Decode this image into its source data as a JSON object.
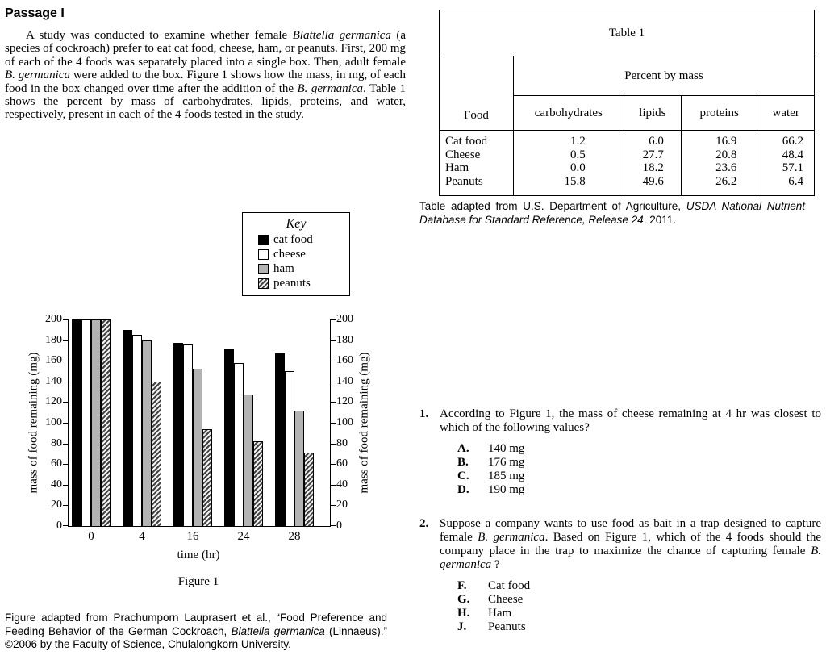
{
  "passage": {
    "title": "Passage I",
    "paragraph": [
      {
        "text": "A study was conducted to examine whether female "
      },
      {
        "text": "Blattella germanica",
        "italic": true
      },
      {
        "text": " (a species of cockroach) prefer to eat cat food, cheese, ham, or peanuts. First, 200 mg of each of the 4 foods was separately placed into a single box. Then, adult female "
      },
      {
        "text": "B. germanica",
        "italic": true
      },
      {
        "text": " were added to the box. Figure 1 shows how the mass, in mg, of each food in the box changed over time after the addition of the "
      },
      {
        "text": "B. germanica",
        "italic": true
      },
      {
        "text": ". Table 1 shows the percent by mass of carbohydrates, lipids, proteins, and water, respectively, present in each of the 4 foods tested in the study."
      }
    ]
  },
  "figure": {
    "key_title": "Key",
    "legend": [
      {
        "label": "cat food",
        "swatch": "black"
      },
      {
        "label": "cheese",
        "swatch": "white"
      },
      {
        "label": "ham",
        "swatch": "gray"
      },
      {
        "label": "peanuts",
        "swatch": "hatch"
      }
    ],
    "caption": "Figure 1",
    "attribution": [
      {
        "text": "Figure adapted from Prachumporn Lauprasert et al., “Food Preference and Feeding Behavior of the German Cockroach, "
      },
      {
        "text": "Blattella germanica",
        "italic": true
      },
      {
        "text": " (Linnaeus).” ©2006 by the Faculty of Science, Chulalongkorn University."
      }
    ]
  },
  "chart_data": {
    "type": "bar",
    "title": "Figure 1",
    "categories": [
      "0",
      "4",
      "16",
      "24",
      "28"
    ],
    "xlabel": "time (hr)",
    "ylabel": "mass of food remaining (mg)",
    "ylim": [
      0,
      200
    ],
    "ytick_step": 20,
    "grid": false,
    "legend_position": "above-right",
    "series": [
      {
        "name": "cat food",
        "values": [
          200,
          190,
          177,
          172,
          167
        ]
      },
      {
        "name": "cheese",
        "values": [
          200,
          185,
          176,
          158,
          150
        ]
      },
      {
        "name": "ham",
        "values": [
          200,
          180,
          152,
          127,
          112
        ]
      },
      {
        "name": "peanuts",
        "values": [
          200,
          140,
          94,
          82,
          71
        ]
      }
    ]
  },
  "table": {
    "title": "Table 1",
    "food_header": "Food",
    "group_header": "Percent by mass",
    "columns": [
      "carbohydrates",
      "lipids",
      "proteins",
      "water"
    ],
    "rows": [
      {
        "food": "Cat food",
        "values": [
          "1.2",
          "6.0",
          "16.9",
          "66.2"
        ]
      },
      {
        "food": "Cheese",
        "values": [
          "0.5",
          "27.7",
          "20.8",
          "48.4"
        ]
      },
      {
        "food": "Ham",
        "values": [
          "0.0",
          "18.2",
          "23.6",
          "57.1"
        ]
      },
      {
        "food": "Peanuts",
        "values": [
          "15.8",
          "49.6",
          "26.2",
          "6.4"
        ]
      }
    ],
    "attribution": [
      {
        "text": "Table adapted from U.S. Department of Agriculture, "
      },
      {
        "text": "USDA National Nutrient Database for Standard Reference, Release 24",
        "italic": true
      },
      {
        "text": ". 2011."
      }
    ]
  },
  "questions": [
    {
      "number": "1.",
      "prompt": [
        {
          "text": "According to Figure 1, the mass of cheese remaining at 4 hr was closest to which of the following values?"
        }
      ],
      "options": [
        {
          "letter": "A.",
          "text": "140 mg"
        },
        {
          "letter": "B.",
          "text": "176 mg"
        },
        {
          "letter": "C.",
          "text": "185 mg"
        },
        {
          "letter": "D.",
          "text": "190 mg"
        }
      ]
    },
    {
      "number": "2.",
      "prompt": [
        {
          "text": "Suppose a company wants to use food as bait in a trap designed to capture female "
        },
        {
          "text": "B. germanica",
          "italic": true
        },
        {
          "text": ". Based on Figure 1, which of the 4 foods should the company place in the trap to maximize the chance of capturing female "
        },
        {
          "text": "B. germanica",
          "italic": true
        },
        {
          "text": " ?"
        }
      ],
      "options": [
        {
          "letter": "F.",
          "text": "Cat food"
        },
        {
          "letter": "G.",
          "text": "Cheese"
        },
        {
          "letter": "H.",
          "text": "Ham"
        },
        {
          "letter": "J.",
          "text": "Peanuts"
        }
      ]
    }
  ]
}
